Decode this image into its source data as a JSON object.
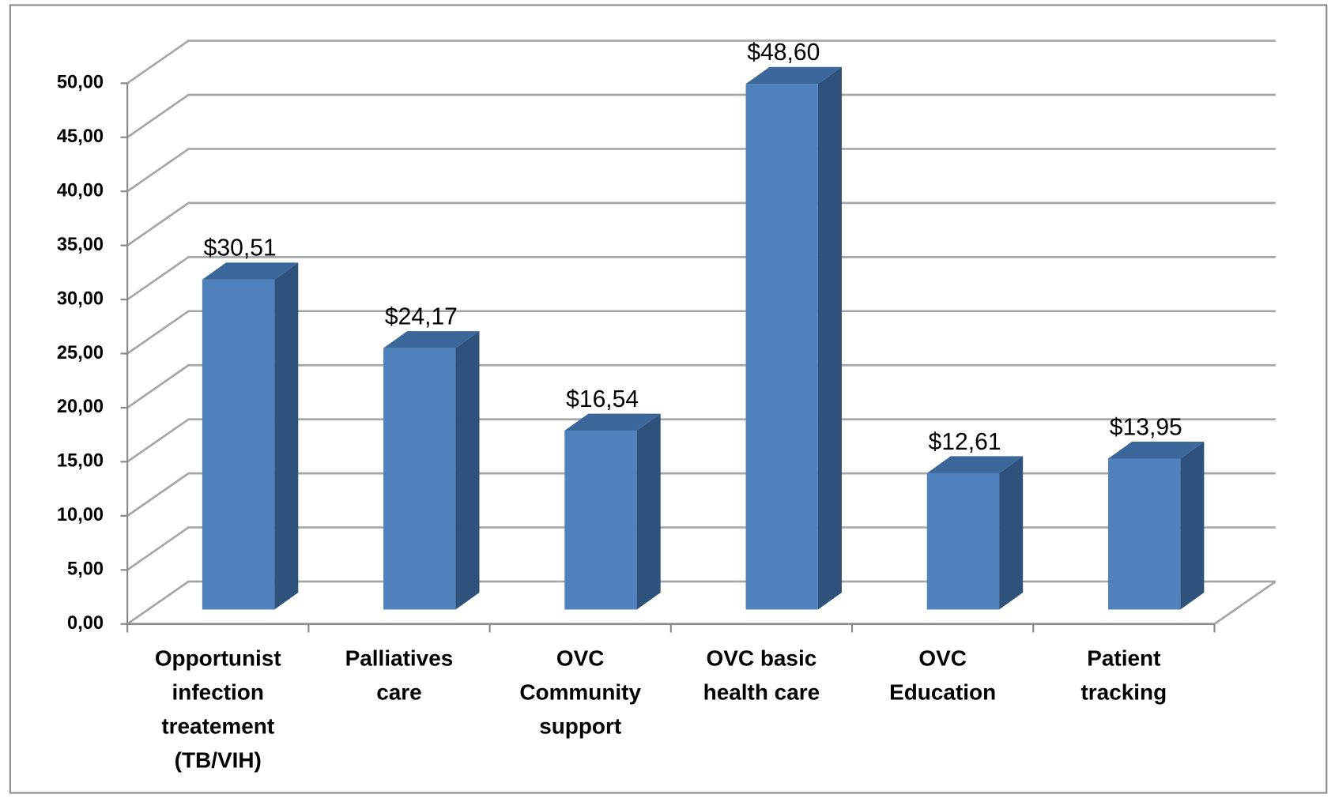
{
  "chart_data": {
    "type": "bar3d",
    "categories": [
      "Opportunist infection treatement (TB/VIH)",
      "Palliatives care",
      "OVC Community support",
      "OVC basic health care",
      "OVC Education",
      "Patient tracking"
    ],
    "values": [
      30.51,
      24.17,
      16.54,
      48.6,
      12.61,
      13.95
    ],
    "value_labels": [
      "$30,51",
      "$24,17",
      "$16,54",
      "$48,60",
      "$12,61",
      "$13,95"
    ],
    "color": "#4f81bd",
    "ylim": [
      0,
      50
    ],
    "yticks": [
      {
        "value": 0,
        "label": "0,00"
      },
      {
        "value": 5,
        "label": "5,00"
      },
      {
        "value": 10,
        "label": "10,00"
      },
      {
        "value": 15,
        "label": "15,00"
      },
      {
        "value": 20,
        "label": "20,00"
      },
      {
        "value": 25,
        "label": "25,00"
      },
      {
        "value": 30,
        "label": "30,00"
      },
      {
        "value": 35,
        "label": "35,00"
      },
      {
        "value": 40,
        "label": "40,00"
      },
      {
        "value": 45,
        "label": "45,00"
      },
      {
        "value": 50,
        "label": "50,00"
      }
    ],
    "grid": true
  }
}
